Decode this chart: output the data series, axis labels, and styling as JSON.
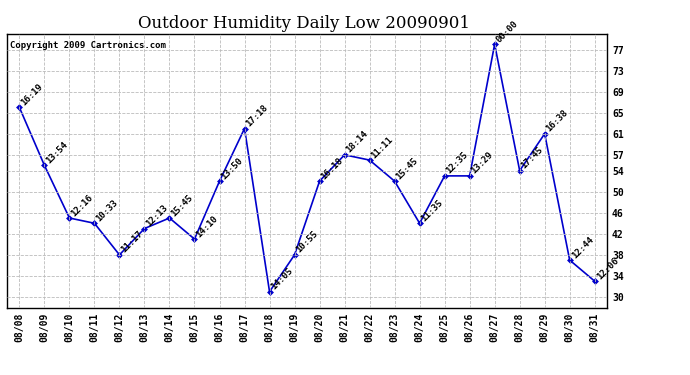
{
  "title": "Outdoor Humidity Daily Low 20090901",
  "copyright": "Copyright 2009 Cartronics.com",
  "dates": [
    "08/08",
    "08/09",
    "08/10",
    "08/11",
    "08/12",
    "08/13",
    "08/14",
    "08/15",
    "08/16",
    "08/17",
    "08/18",
    "08/19",
    "08/20",
    "08/21",
    "08/22",
    "08/23",
    "08/24",
    "08/25",
    "08/26",
    "08/27",
    "08/28",
    "08/29",
    "08/30",
    "08/31"
  ],
  "values": [
    66,
    55,
    45,
    44,
    38,
    43,
    45,
    41,
    52,
    62,
    31,
    38,
    52,
    57,
    56,
    52,
    44,
    53,
    53,
    78,
    54,
    61,
    37,
    33
  ],
  "labels": [
    "16:19",
    "13:54",
    "12:16",
    "10:33",
    "11:17",
    "12:13",
    "15:45",
    "14:10",
    "13:50",
    "17:18",
    "14:05",
    "10:55",
    "16:18",
    "18:14",
    "11:11",
    "15:45",
    "11:35",
    "12:35",
    "13:29",
    "00:00",
    "17:45",
    "16:38",
    "12:44",
    "12:06"
  ],
  "line_color": "#0000cc",
  "marker_color": "#0000cc",
  "bg_color": "#ffffff",
  "plot_bg_color": "#ffffff",
  "grid_color": "#bbbbbb",
  "ylim": [
    28,
    80
  ],
  "yticks": [
    30,
    34,
    38,
    42,
    46,
    50,
    54,
    57,
    61,
    65,
    69,
    73,
    77
  ],
  "title_fontsize": 12,
  "label_fontsize": 6.5,
  "tick_fontsize": 7,
  "copyright_fontsize": 6.5
}
